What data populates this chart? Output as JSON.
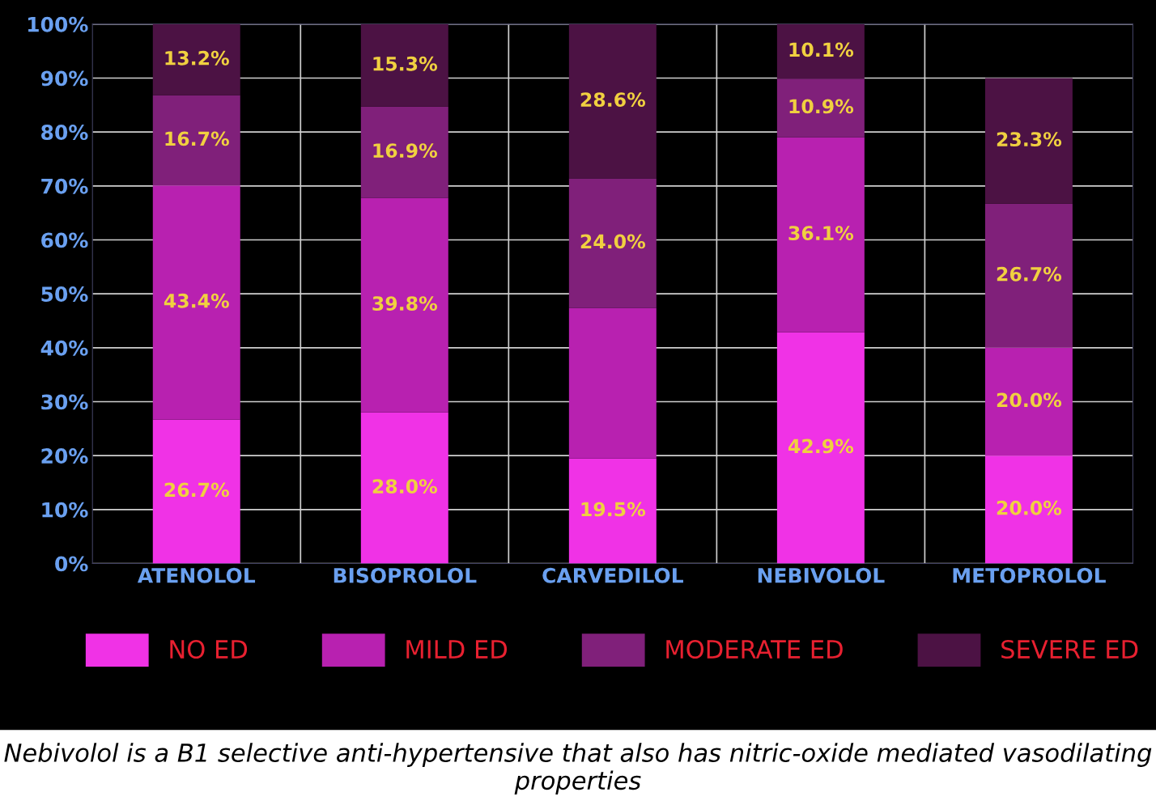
{
  "chart_data": {
    "type": "bar",
    "stacked": true,
    "categories": [
      "ATENOLOL",
      "BISOPROLOL",
      "CARVEDILOL",
      "NEBIVOLOL",
      "METOPROLOL"
    ],
    "series": [
      {
        "name": "NO ED",
        "color": "#f032e6",
        "values": [
          26.7,
          28.0,
          19.5,
          42.9,
          20.0
        ],
        "value_labels": [
          "26.7%",
          "28.0%",
          "19.5%",
          "42.9%",
          "20.0%"
        ]
      },
      {
        "name": "MILD ED",
        "color": "#b821b0",
        "values": [
          43.4,
          39.8,
          27.9,
          36.1,
          20.0
        ],
        "value_labels": [
          "43.4%",
          "39.8%",
          null,
          "36.1%",
          "20.0%"
        ]
      },
      {
        "name": "MODERATE ED",
        "color": "#80207a",
        "values": [
          16.7,
          16.9,
          24.0,
          10.9,
          26.7
        ],
        "value_labels": [
          "16.7%",
          "16.9%",
          "24.0%",
          "10.9%",
          "26.7%"
        ]
      },
      {
        "name": "SEVERE ED",
        "color": "#4c1244",
        "values": [
          13.2,
          15.3,
          28.6,
          10.1,
          23.3
        ],
        "value_labels": [
          "13.2%",
          "15.3%",
          "28.6%",
          "10.1%",
          "23.3%"
        ]
      }
    ],
    "ylim": [
      0,
      100
    ],
    "yticks": [
      {
        "value": 0,
        "label": "0%"
      },
      {
        "value": 10,
        "label": "10%"
      },
      {
        "value": 20,
        "label": "20%"
      },
      {
        "value": 30,
        "label": "30%"
      },
      {
        "value": 40,
        "label": "40%"
      },
      {
        "value": 50,
        "label": "50%"
      },
      {
        "value": 60,
        "label": "60%"
      },
      {
        "value": 70,
        "label": "70%"
      },
      {
        "value": 80,
        "label": "80%"
      },
      {
        "value": 90,
        "label": "90%"
      },
      {
        "value": 100,
        "label": "100%"
      }
    ],
    "grid": true,
    "legend": "bottom",
    "annotations": [
      "Nebivolol is a B1 selective anti-hypertensive that also has nitric-oxide mediated vasodilating properties"
    ]
  }
}
